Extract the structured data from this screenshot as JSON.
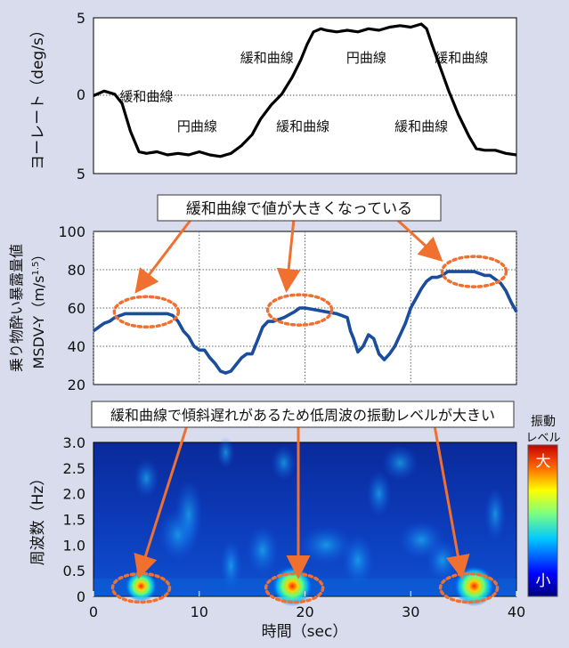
{
  "chart_data": [
    {
      "type": "line",
      "ylabel": "ヨーレート（deg/s）",
      "yticks": [
        "5",
        "0",
        "5"
      ],
      "ylim": [
        -5,
        5
      ],
      "xlim": [
        0,
        40
      ],
      "grid": false,
      "annotations": [
        {
          "text": "緩和曲線",
          "x": 5.0,
          "y": 0.0
        },
        {
          "text": "円曲線",
          "x": 9.8,
          "y": -1.9
        },
        {
          "text": "緩和曲線",
          "x": 16.4,
          "y": 2.5
        },
        {
          "text": "緩和曲線",
          "x": 19.8,
          "y": -1.9
        },
        {
          "text": "円曲線",
          "x": 25.8,
          "y": 2.5
        },
        {
          "text": "緩和曲線",
          "x": 34.8,
          "y": 2.5
        },
        {
          "text": "緩和曲線",
          "x": 31.0,
          "y": -1.9
        }
      ],
      "series": [
        {
          "color": "#000000",
          "x": [
            0,
            1,
            2,
            2.7,
            3.5,
            4.3,
            5,
            6,
            7,
            8,
            9,
            10,
            11,
            12,
            13,
            14,
            15,
            15.8,
            16.8,
            17.8,
            18.8,
            19.6,
            20.2,
            20.8,
            21.5,
            22,
            23,
            24,
            25,
            26,
            27,
            28,
            29,
            30,
            31,
            31.5,
            32,
            32.8,
            33.6,
            34.5,
            35.5,
            36.2,
            37,
            38,
            39,
            40
          ],
          "y": [
            0,
            0.3,
            0.1,
            -0.5,
            -2.3,
            -3.6,
            -3.7,
            -3.6,
            -3.8,
            -3.7,
            -3.8,
            -3.6,
            -3.8,
            -3.9,
            -3.7,
            -3.2,
            -2.5,
            -1.5,
            -0.6,
            0.1,
            1.2,
            2.3,
            3.3,
            4.1,
            4.3,
            4.2,
            4.1,
            4.2,
            4.1,
            4.3,
            4.2,
            4.4,
            4.5,
            4.4,
            4.6,
            4.3,
            3.3,
            1.8,
            0.3,
            -1.2,
            -2.6,
            -3.4,
            -3.5,
            -3.5,
            -3.7,
            -3.8
          ]
        }
      ]
    },
    {
      "type": "line",
      "ylabel": "乗り物酔い暴露量値",
      "ylabel2": "MSDV-Y（m/s",
      "ylabel_sup": "1.5",
      "ylabel_close": "）",
      "yticks": [
        "100",
        "80",
        "60",
        "40",
        "20"
      ],
      "ylim": [
        20,
        100
      ],
      "xlim": [
        0,
        40
      ],
      "grid": true,
      "callout": "緩和曲線で値が大きくなっている",
      "highlights": [
        {
          "x": 5,
          "y": 58
        },
        {
          "x": 19.5,
          "y": 59
        },
        {
          "x": 36,
          "y": 79
        }
      ],
      "series": [
        {
          "color": "#1a4d9c",
          "x": [
            0,
            0.5,
            1,
            1.5,
            2,
            2.5,
            3,
            3.5,
            4,
            5,
            6,
            7,
            7.5,
            8,
            8.5,
            9,
            9.5,
            10,
            10.5,
            11,
            11.5,
            12,
            12.5,
            13,
            14,
            14.5,
            15,
            15.5,
            16,
            16.5,
            17,
            18,
            19,
            19.5,
            20,
            21,
            22,
            23,
            23.5,
            24,
            24.3,
            24.6,
            25,
            25.5,
            26,
            26.5,
            27,
            27.5,
            28,
            28.5,
            29,
            29.5,
            30,
            30.3,
            30.6,
            31,
            31.5,
            32,
            32.5,
            33,
            33.5,
            34,
            35,
            36,
            37,
            37.5,
            38,
            38.5,
            39,
            39.5,
            40
          ],
          "y": [
            48,
            50,
            52,
            53,
            55,
            56,
            57,
            57,
            57,
            57,
            57,
            57,
            56,
            53,
            48,
            45,
            40,
            38,
            38,
            34,
            31,
            27,
            26,
            27,
            34,
            36,
            36,
            43,
            50,
            53,
            53,
            55,
            58,
            60,
            60,
            59,
            58,
            57,
            56,
            55,
            48,
            44,
            37,
            40,
            46,
            44,
            36,
            33,
            36,
            40,
            46,
            52,
            60,
            63,
            66,
            70,
            74,
            76,
            76,
            77,
            79,
            79,
            79,
            79,
            77,
            77,
            75,
            73,
            69,
            63,
            58
          ]
        }
      ]
    },
    {
      "type": "heatmap",
      "ylabel": "周波数（Hz）",
      "xlabel": "時間（sec）",
      "xticks": [
        "0",
        "10",
        "20",
        "30",
        "40"
      ],
      "yticks": [
        "3.0",
        "2.5",
        "2.0",
        "1.5",
        "1.0",
        "0.5",
        "0"
      ],
      "xlim": [
        0,
        40
      ],
      "ylim": [
        0,
        3
      ],
      "callout": "緩和曲線で傾斜遅れがあるため低周波の振動レベルが大きい",
      "colorbar_title": [
        "振動",
        "レベル"
      ],
      "colorbar_top": "大",
      "colorbar_bottom": "小",
      "hotspots": [
        {
          "x": 4.5,
          "y": 0.2,
          "level": 0.75
        },
        {
          "x": 18.8,
          "y": 0.2,
          "level": 0.95
        },
        {
          "x": 36,
          "y": 0.2,
          "level": 0.95
        }
      ],
      "highlights": [
        {
          "x": 4.5,
          "y": 0.2
        },
        {
          "x": 19,
          "y": 0.2
        },
        {
          "x": 35.5,
          "y": 0.2
        }
      ]
    }
  ]
}
